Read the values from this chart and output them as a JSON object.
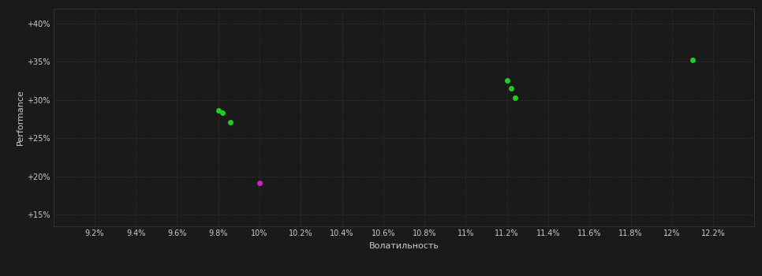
{
  "background_color": "#1a1a1a",
  "plot_bg_color": "#1a1a1a",
  "grid_color": "#3a3a3a",
  "text_color": "#cccccc",
  "xlabel": "Волатильность",
  "ylabel": "Performance",
  "xlim": [
    9.0,
    12.4
  ],
  "ylim": [
    13.5,
    42.0
  ],
  "xtick_values": [
    9.2,
    9.4,
    9.6,
    9.8,
    10.0,
    10.2,
    10.4,
    10.6,
    10.8,
    11.0,
    11.2,
    11.4,
    11.6,
    11.8,
    12.0,
    12.2
  ],
  "xtick_labels": [
    "9.2%",
    "9.4%",
    "9.6%",
    "9.8%",
    "10%",
    "10.2%",
    "10.4%",
    "10.6%",
    "10.8%",
    "11%",
    "11.2%",
    "11.4%",
    "11.6%",
    "11.8%",
    "12%",
    "12.2%"
  ],
  "ytick_values": [
    15,
    20,
    25,
    30,
    35,
    40
  ],
  "ytick_labels": [
    "+15%",
    "+20%",
    "+25%",
    "+30%",
    "+35%",
    "+40%"
  ],
  "green_points": [
    [
      9.8,
      28.7
    ],
    [
      9.82,
      28.3
    ],
    [
      9.86,
      27.1
    ],
    [
      11.2,
      32.6
    ],
    [
      11.22,
      31.5
    ],
    [
      11.24,
      30.3
    ],
    [
      12.1,
      35.3
    ]
  ],
  "magenta_points": [
    [
      10.0,
      19.2
    ]
  ],
  "green_color": "#22cc22",
  "magenta_color": "#cc22cc",
  "marker_size": 5,
  "grid_linestyle": ":",
  "grid_linewidth": 0.6,
  "figsize": [
    9.66,
    3.5
  ],
  "dpi": 100
}
